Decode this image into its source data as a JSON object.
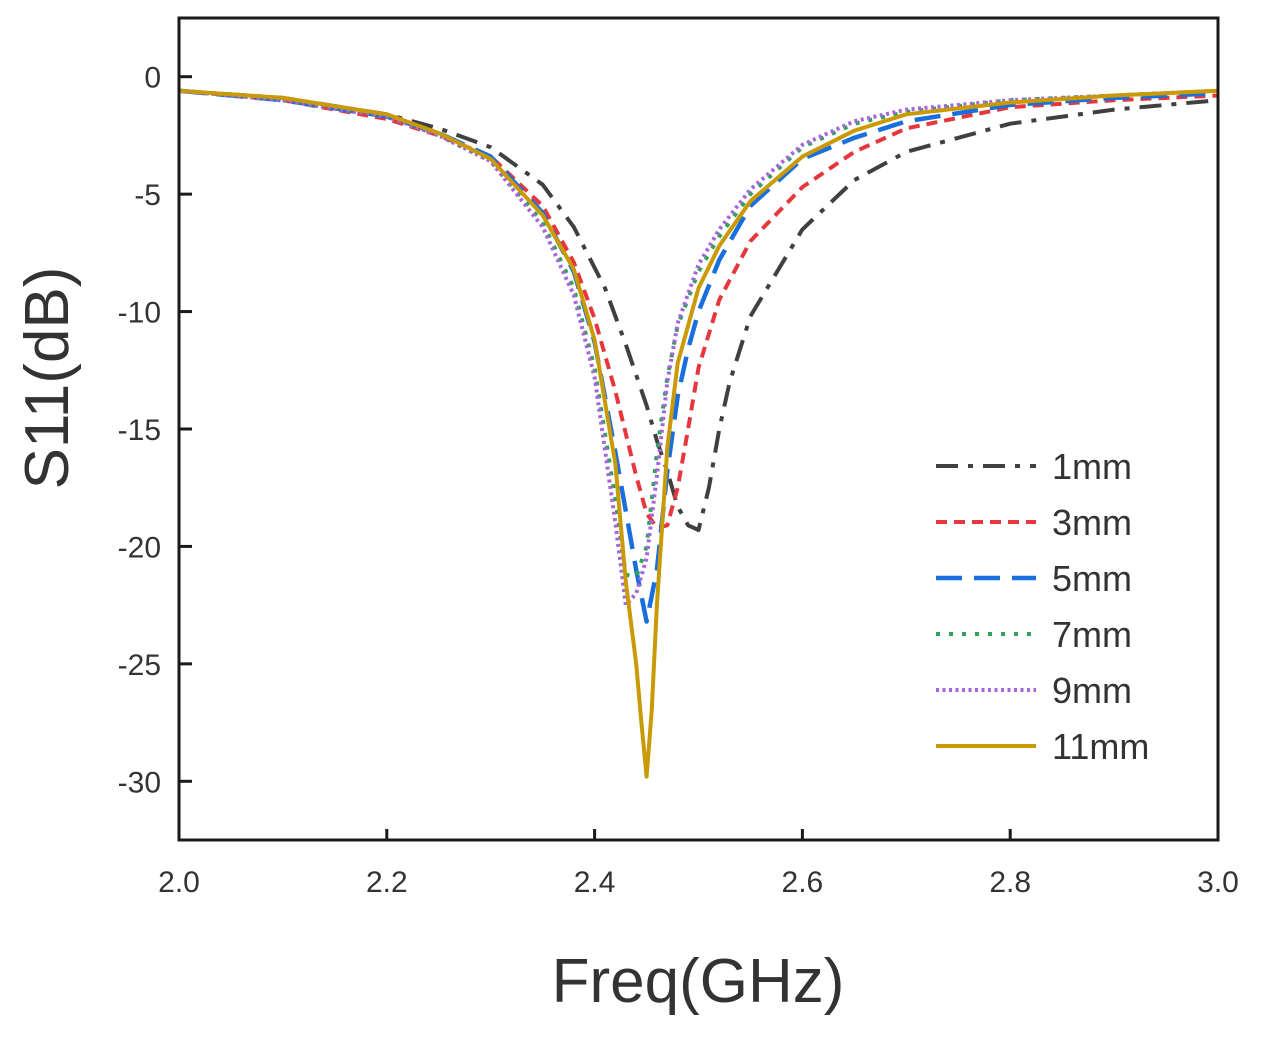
{
  "chart_data": {
    "type": "line",
    "title": "",
    "xlabel": "Freq(GHz)",
    "ylabel": "S11(dB)",
    "xlim": [
      2.0,
      3.0
    ],
    "ylim": [
      -32.5,
      2.5
    ],
    "xticks": [
      2.0,
      2.2,
      2.4,
      2.6,
      2.8,
      3.0
    ],
    "xtick_labels": [
      "2.0",
      "2.2",
      "2.4",
      "2.6",
      "2.8",
      "3.0"
    ],
    "yticks": [
      0,
      -5,
      -10,
      -15,
      -20,
      -25,
      -30
    ],
    "ytick_labels": [
      "0",
      "-5",
      "-10",
      "-15",
      "-20",
      "-25",
      "-30"
    ],
    "grid": false,
    "legend_position": "right",
    "series": [
      {
        "name": "1mm",
        "color": "#404040",
        "dash": "dashdot",
        "x": [
          2.0,
          2.1,
          2.2,
          2.25,
          2.3,
          2.35,
          2.38,
          2.41,
          2.43,
          2.45,
          2.46,
          2.47,
          2.48,
          2.49,
          2.5,
          2.51,
          2.52,
          2.53,
          2.55,
          2.6,
          2.65,
          2.7,
          2.8,
          2.9,
          3.0
        ],
        "y": [
          -0.6,
          -0.9,
          -1.6,
          -2.2,
          -3.0,
          -4.6,
          -6.4,
          -9.0,
          -11.4,
          -14.0,
          -15.5,
          -16.8,
          -18.3,
          -19.1,
          -19.3,
          -17.5,
          -15.0,
          -13.0,
          -10.2,
          -6.5,
          -4.4,
          -3.2,
          -2.0,
          -1.4,
          -1.0
        ]
      },
      {
        "name": "3mm",
        "color": "#E8373C",
        "dash": "shortdash",
        "x": [
          2.0,
          2.1,
          2.2,
          2.25,
          2.3,
          2.35,
          2.38,
          2.4,
          2.42,
          2.44,
          2.45,
          2.46,
          2.47,
          2.48,
          2.49,
          2.5,
          2.52,
          2.55,
          2.6,
          2.65,
          2.7,
          2.8,
          2.9,
          3.0
        ],
        "y": [
          -0.6,
          -1.0,
          -1.8,
          -2.5,
          -3.4,
          -5.5,
          -7.9,
          -10.3,
          -13.4,
          -17.0,
          -18.6,
          -19.2,
          -19.1,
          -17.5,
          -15.0,
          -12.4,
          -9.5,
          -7.0,
          -4.7,
          -3.2,
          -2.2,
          -1.3,
          -1.0,
          -0.8
        ]
      },
      {
        "name": "5mm",
        "color": "#1A6FDF",
        "dash": "longdash",
        "x": [
          2.0,
          2.1,
          2.2,
          2.25,
          2.3,
          2.35,
          2.38,
          2.4,
          2.42,
          2.44,
          2.45,
          2.46,
          2.47,
          2.48,
          2.49,
          2.5,
          2.52,
          2.55,
          2.6,
          2.65,
          2.7,
          2.8,
          2.9,
          3.0
        ],
        "y": [
          -0.6,
          -1.0,
          -1.7,
          -2.4,
          -3.4,
          -5.8,
          -8.3,
          -11.3,
          -16.0,
          -21.0,
          -23.2,
          -21.0,
          -16.8,
          -13.6,
          -11.6,
          -10.0,
          -7.8,
          -5.5,
          -3.5,
          -2.6,
          -1.9,
          -1.2,
          -0.9,
          -0.7
        ]
      },
      {
        "name": "7mm",
        "color": "#2FA35A",
        "dash": "dotted",
        "x": [
          2.0,
          2.1,
          2.2,
          2.25,
          2.3,
          2.35,
          2.38,
          2.4,
          2.42,
          2.43,
          2.44,
          2.45,
          2.46,
          2.47,
          2.48,
          2.5,
          2.52,
          2.55,
          2.6,
          2.65,
          2.7,
          2.8,
          2.9,
          3.0
        ],
        "y": [
          -0.6,
          -1.0,
          -1.7,
          -2.5,
          -3.6,
          -6.2,
          -9.0,
          -12.4,
          -18.0,
          -21.2,
          -21.3,
          -20.0,
          -16.0,
          -12.8,
          -10.6,
          -8.3,
          -6.8,
          -5.0,
          -3.0,
          -2.0,
          -1.5,
          -1.0,
          -0.8,
          -0.6
        ]
      },
      {
        "name": "9mm",
        "color": "#A566DB",
        "dash": "finedot",
        "x": [
          2.0,
          2.1,
          2.2,
          2.25,
          2.3,
          2.35,
          2.38,
          2.4,
          2.42,
          2.43,
          2.44,
          2.45,
          2.46,
          2.47,
          2.48,
          2.5,
          2.52,
          2.55,
          2.6,
          2.65,
          2.7,
          2.8,
          2.9,
          3.0
        ],
        "y": [
          -0.6,
          -1.0,
          -1.7,
          -2.5,
          -3.6,
          -6.4,
          -9.3,
          -12.8,
          -19.0,
          -22.5,
          -22.0,
          -20.5,
          -17.0,
          -13.0,
          -10.5,
          -8.0,
          -6.5,
          -4.8,
          -2.9,
          -1.9,
          -1.4,
          -1.0,
          -0.8,
          -0.6
        ]
      },
      {
        "name": "11mm",
        "color": "#C99A06",
        "dash": "solid",
        "x": [
          2.0,
          2.1,
          2.2,
          2.25,
          2.3,
          2.35,
          2.38,
          2.4,
          2.42,
          2.43,
          2.44,
          2.445,
          2.45,
          2.455,
          2.46,
          2.47,
          2.48,
          2.5,
          2.52,
          2.55,
          2.6,
          2.65,
          2.7,
          2.8,
          2.9,
          3.0
        ],
        "y": [
          -0.6,
          -0.9,
          -1.6,
          -2.4,
          -3.5,
          -5.9,
          -8.2,
          -11.2,
          -16.5,
          -21.5,
          -25.0,
          -27.5,
          -29.8,
          -27.0,
          -22.5,
          -15.8,
          -12.2,
          -9.0,
          -7.2,
          -5.3,
          -3.4,
          -2.3,
          -1.6,
          -1.1,
          -0.8,
          -0.6
        ]
      }
    ]
  }
}
